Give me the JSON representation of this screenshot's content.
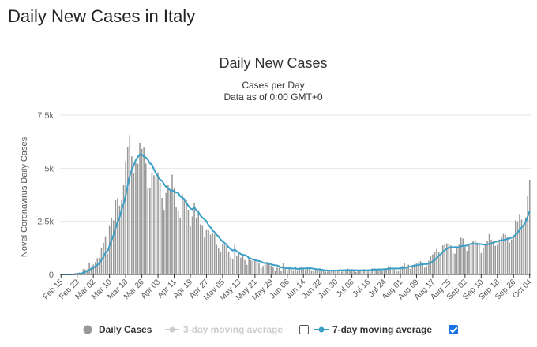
{
  "page": {
    "title": "Daily New Cases in Italy"
  },
  "chart_data": {
    "type": "bar",
    "title": "Daily New Cases",
    "subtitle_lines": [
      "Cases per Day",
      "Data as of 0:00 GMT+0"
    ],
    "ylabel": "Novel Coronavirus Daily Cases",
    "xlabel": "",
    "ylim": [
      0,
      7500
    ],
    "y_ticks": [
      0,
      2500,
      5000,
      7500
    ],
    "y_tick_labels": [
      "0",
      "2.5k",
      "5k",
      "7.5k"
    ],
    "start_date": "2020-02-15",
    "x_tick_labels": [
      "Feb 15",
      "Feb 23",
      "Mar 02",
      "Mar 10",
      "Mar 18",
      "Mar 26",
      "Apr 03",
      "Apr 11",
      "Apr 19",
      "Apr 27",
      "May 05",
      "May 13",
      "May 21",
      "May 29",
      "Jun 06",
      "Jun 14",
      "Jun 22",
      "Jun 30",
      "Jul 08",
      "Jul 16",
      "Jul 24",
      "Aug 01",
      "Aug 09",
      "Aug 17",
      "Aug 25",
      "Sep 02",
      "Sep 10",
      "Sep 18",
      "Sep 26",
      "Oct 04"
    ],
    "grid": true,
    "legend_position": "bottom",
    "colors": {
      "bars": "#999999",
      "moving_average": "#3a9fc6"
    },
    "legend": [
      {
        "label": "Daily Cases",
        "symbol": "circle-icon",
        "color": "#999999",
        "enabled": true
      },
      {
        "label": "3-day moving average",
        "symbol": "line-marker-icon",
        "color": "#cccccc",
        "enabled": false,
        "checked": false
      },
      {
        "label": "7-day moving average",
        "symbol": "line-marker-icon",
        "color": "#3a9fc6",
        "enabled": true,
        "checked": true
      }
    ],
    "series": [
      {
        "name": "Daily Cases",
        "values": [
          0,
          0,
          0,
          0,
          0,
          0,
          17,
          62,
          76,
          93,
          78,
          250,
          238,
          240,
          566,
          342,
          466,
          587,
          769,
          778,
          1247,
          1492,
          1797,
          977,
          2313,
          2651,
          2547,
          3497,
          3590,
          3233,
          3526,
          4207,
          5322,
          5986,
          6557,
          5560,
          4789,
          5249,
          5210,
          6203,
          5909,
          5974,
          5217,
          4050,
          4053,
          4782,
          4668,
          4585,
          4805,
          4316,
          3599,
          3039,
          3836,
          4204,
          3951,
          4694,
          4092,
          3153,
          2972,
          2667,
          3786,
          3493,
          3491,
          3047,
          2256,
          2729,
          3370,
          2646,
          3021,
          2357,
          2324,
          1739,
          2091,
          2086,
          1872,
          1965,
          1900,
          1389,
          1221,
          1075,
          1444,
          1401,
          1327,
          1083,
          802,
          744,
          1402,
          888,
          992,
          789,
          875,
          675,
          451,
          813,
          665,
          642,
          652,
          669,
          531,
          300,
          397,
          584,
          593,
          516,
          416,
          355,
          178,
          318,
          321,
          177,
          518,
          270,
          197,
          280,
          283,
          202,
          379,
          163,
          346,
          338,
          301,
          210,
          328,
          331,
          200,
          192,
          224,
          221,
          259,
          175,
          174,
          126,
          142,
          187,
          201,
          223,
          235,
          192,
          208,
          138,
          193,
          229,
          276,
          188,
          234,
          169,
          114,
          163,
          230,
          233,
          249,
          219,
          190,
          129,
          282,
          306,
          252,
          275,
          255,
          170,
          212,
          289,
          386,
          379,
          295,
          239,
          159,
          190,
          384,
          402,
          552,
          347,
          463,
          259,
          412,
          481,
          523,
          574,
          629,
          479,
          320,
          403,
          642,
          845,
          947,
          1071,
          1210,
          1071,
          878,
          1367,
          1411,
          1462,
          1444,
          1365,
          996,
          978,
          1326,
          1397,
          1733,
          1695,
          1297,
          1108,
          1370,
          1434,
          1597,
          1616,
          1501,
          1458,
          1008,
          1229,
          1452,
          1585,
          1907,
          1638,
          1587,
          1350,
          1392,
          1640,
          1786,
          1912,
          1869,
          1766,
          1494,
          1648,
          1851,
          2548,
          2499,
          2844,
          2578,
          2257,
          2677,
          3678,
          4458
        ]
      }
    ]
  }
}
